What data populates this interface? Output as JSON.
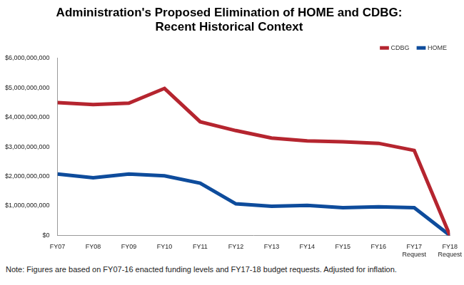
{
  "chart_data": {
    "type": "line",
    "title": [
      "Administration's Proposed Elimination of HOME and CDBG:",
      "Recent Historical Context"
    ],
    "note": "Note: Figures are based on FY07-16 enacted funding levels and FY17-18 budget requests. Adjusted for inflation.",
    "categories": [
      "FY07",
      "FY08",
      "FY09",
      "FY10",
      "FY11",
      "FY12",
      "FY13",
      "FY14",
      "FY15",
      "FY16",
      "FY17 Request",
      "FY18 Request"
    ],
    "series": [
      {
        "name": "CDBG",
        "color": "#b5252f",
        "values": [
          4500000000,
          4430000000,
          4480000000,
          4980000000,
          3850000000,
          3550000000,
          3300000000,
          3200000000,
          3170000000,
          3120000000,
          2880000000,
          0
        ]
      },
      {
        "name": "HOME",
        "color": "#0e4c9c",
        "values": [
          2080000000,
          1950000000,
          2080000000,
          2020000000,
          1770000000,
          1070000000,
          990000000,
          1020000000,
          940000000,
          970000000,
          940000000,
          0
        ]
      }
    ],
    "ylim": [
      0,
      6000000000
    ],
    "yticks": [
      {
        "value": 0,
        "label": "$0"
      },
      {
        "value": 1000000000,
        "label": "$1,000,000,000"
      },
      {
        "value": 2000000000,
        "label": "$2,000,000,000"
      },
      {
        "value": 3000000000,
        "label": "$3,000,000,000"
      },
      {
        "value": 4000000000,
        "label": "$4,000,000,000"
      },
      {
        "value": 5000000000,
        "label": "$5,000,000,000"
      },
      {
        "value": 6000000000,
        "label": "$6,000,000,000"
      }
    ],
    "grid": false,
    "legend": "top-right"
  }
}
